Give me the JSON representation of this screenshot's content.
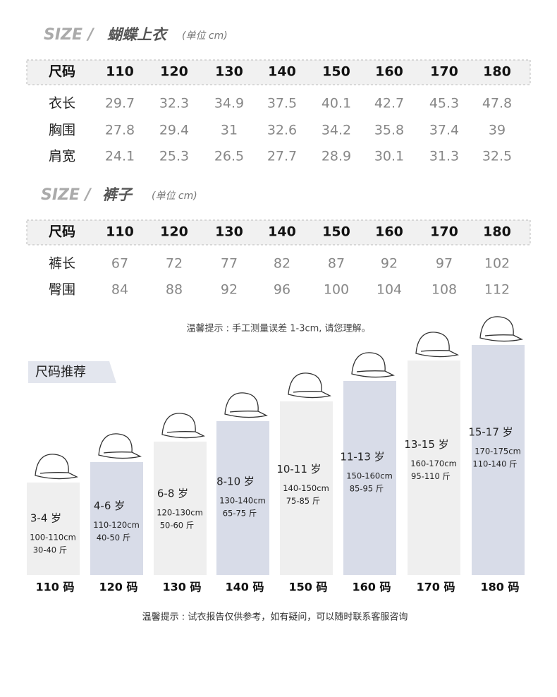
{
  "shirt_table": {
    "title_en": "SIZE /",
    "title": "蝴蝶上衣",
    "unit": "(单位 cm)",
    "header": [
      "尺码",
      "110",
      "120",
      "130",
      "140",
      "150",
      "160",
      "170",
      "180"
    ],
    "rows": [
      [
        "衣长",
        "29.7",
        "32.3",
        "34.9",
        "37.5",
        "40.1",
        "42.7",
        "45.3",
        "47.8"
      ],
      [
        "胸围",
        "27.8",
        "29.4",
        "31",
        "32.6",
        "34.2",
        "35.8",
        "37.4",
        "39"
      ],
      [
        "肩宽",
        "24.1",
        "25.3",
        "26.5",
        "27.7",
        "28.9",
        "30.1",
        "31.3",
        "32.5"
      ]
    ]
  },
  "pants_table": {
    "title_en": "SIZE /",
    "title": "裤子",
    "unit": "(单位 cm)",
    "header": [
      "尺码",
      "110",
      "120",
      "130",
      "140",
      "150",
      "160",
      "170",
      "180"
    ],
    "rows": [
      [
        "裤长",
        "67",
        "72",
        "77",
        "82",
        "87",
        "92",
        "97",
        "102"
      ],
      [
        "臀围",
        "84",
        "88",
        "92",
        "96",
        "100",
        "104",
        "108",
        "112"
      ]
    ]
  },
  "note1": "温馨提示 : 手工测量误差 1-3cm, 请您理解。",
  "recommend": {
    "title": "尺码推荐",
    "items": [
      {
        "age": "3-4 岁",
        "height": "100-110cm",
        "weight": "30-40 斤",
        "size": "110 码"
      },
      {
        "age": "4-6 岁",
        "height": "110-120cm",
        "weight": "40-50 斤",
        "size": "120 码"
      },
      {
        "age": "6-8 岁",
        "height": "120-130cm",
        "weight": "50-60 斤",
        "size": "130 码"
      },
      {
        "age": "8-10 岁",
        "height": "130-140cm",
        "weight": "65-75 斤",
        "size": "140 码"
      },
      {
        "age": "10-11 岁",
        "height": "140-150cm",
        "weight": "75-85 斤",
        "size": "150 码"
      },
      {
        "age": "11-13 岁",
        "height": "150-160cm",
        "weight": "85-95 斤",
        "size": "160 码"
      },
      {
        "age": "13-15 岁",
        "height": "160-170cm",
        "weight": "95-110 斤",
        "size": "170 码"
      },
      {
        "age": "15-17 岁",
        "height": "170-175cm",
        "weight": "110-140 斤",
        "size": "180 码"
      }
    ]
  },
  "note2": "温馨提示 : 试衣报告仅供参考，如有疑问，可以随时联系客服咨询"
}
